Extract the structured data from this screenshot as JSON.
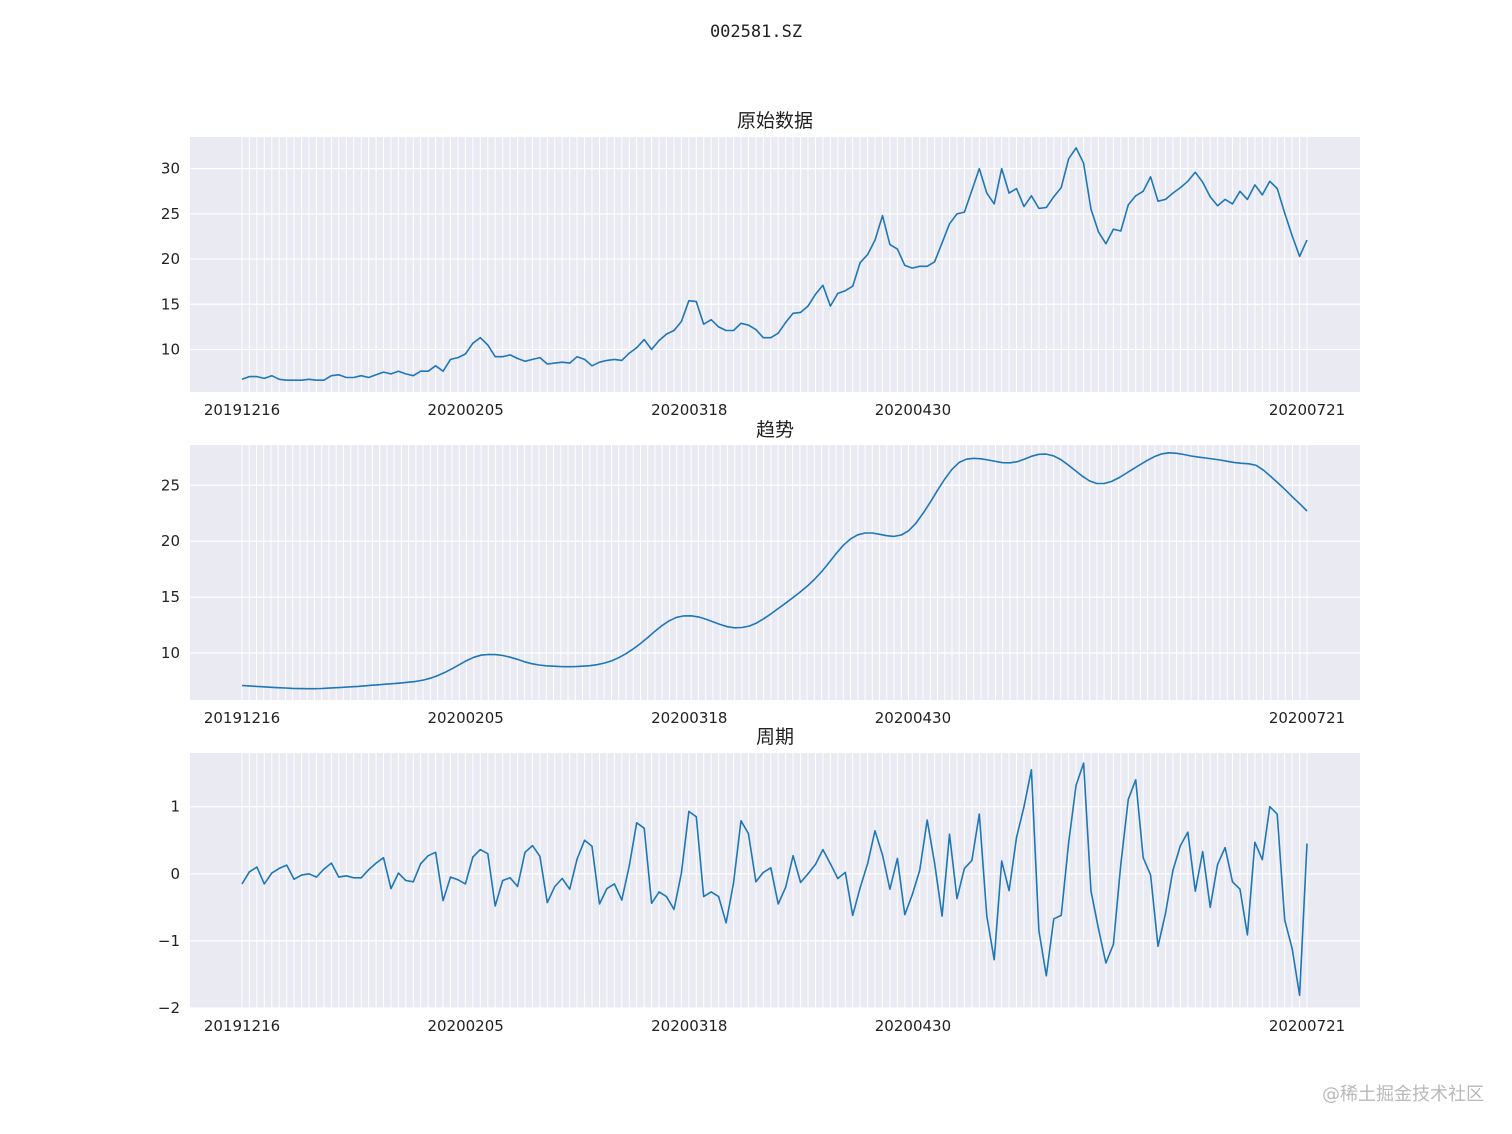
{
  "figure": {
    "suptitle": "002581.SZ",
    "watermark": "@稀土掘金技术社区"
  },
  "chart_data": [
    {
      "type": "line",
      "title": "原始数据",
      "color": "#1f77b4",
      "x_ticks": [
        "20191216",
        "20200205",
        "20200318",
        "20200430",
        "20200721"
      ],
      "y_ticks": [
        10,
        15,
        20,
        25,
        30
      ],
      "ylim": [
        5.3,
        33.5
      ],
      "values": [
        6.7,
        7,
        7,
        6.8,
        7.1,
        6.7,
        6.6,
        6.6,
        6.6,
        6.7,
        6.6,
        6.6,
        7.1,
        7.2,
        6.9,
        6.9,
        7.1,
        6.9,
        7.2,
        7.5,
        7.3,
        7.6,
        7.3,
        7.1,
        7.6,
        7.6,
        8.2,
        7.6,
        8.9,
        9.1,
        9.5,
        10.7,
        11.3,
        10.5,
        9.2,
        9.2,
        9.4,
        9,
        8.7,
        8.9,
        9.1,
        8.4,
        8.5,
        8.6,
        8.5,
        9.2,
        8.9,
        8.2,
        8.6,
        8.8,
        8.9,
        8.8,
        9.6,
        10.2,
        11.1,
        10,
        11,
        11.7,
        12.1,
        13.1,
        15.4,
        15.3,
        12.8,
        13.3,
        12.5,
        12.1,
        12.1,
        12.9,
        12.7,
        12.2,
        11.3,
        11.3,
        11.8,
        13,
        14,
        14.1,
        14.8,
        16.1,
        17.1,
        14.8,
        16.2,
        16.5,
        17,
        19.6,
        20.5,
        22.1,
        24.8,
        21.6,
        21.1,
        19.3,
        19,
        19.2,
        19.2,
        19.7,
        21.8,
        23.9,
        25,
        25.2,
        27.6,
        30,
        27.3,
        26.1,
        30,
        27.3,
        27.8,
        25.8,
        27,
        25.6,
        25.7,
        26.9,
        27.9,
        31.1,
        32.3,
        30.6,
        25.5,
        23,
        21.7,
        23.3,
        23.1,
        26,
        27,
        27.5,
        29.1,
        26.4,
        26.6,
        27.3,
        27.9,
        28.6,
        29.6,
        28.5,
        26.9,
        25.9,
        26.6,
        26.1,
        27.5,
        26.6,
        28.2,
        27.1,
        28.6,
        27.8,
        25.1,
        22.6,
        20.3,
        22.1
      ]
    },
    {
      "type": "line",
      "title": "趋势",
      "color": "#1f77b4",
      "x_ticks": [
        "20191216",
        "20200205",
        "20200318",
        "20200430",
        "20200721"
      ],
      "y_ticks": [
        10,
        15,
        20,
        25
      ],
      "ylim": [
        5.8,
        28.6
      ],
      "values": [
        7.1,
        7.06,
        7.02,
        6.98,
        6.94,
        6.9,
        6.87,
        6.84,
        6.82,
        6.81,
        6.81,
        6.83,
        6.86,
        6.9,
        6.94,
        6.98,
        7.02,
        7.07,
        7.12,
        7.17,
        7.22,
        7.27,
        7.33,
        7.39,
        7.46,
        7.58,
        7.75,
        7.98,
        8.27,
        8.6,
        8.96,
        9.32,
        9.62,
        9.81,
        9.88,
        9.86,
        9.78,
        9.63,
        9.44,
        9.22,
        9.05,
        8.93,
        8.86,
        8.82,
        8.79,
        8.78,
        8.79,
        8.82,
        8.87,
        8.96,
        9.1,
        9.3,
        9.58,
        9.94,
        10.37,
        10.85,
        11.38,
        11.95,
        12.47,
        12.89,
        13.19,
        13.32,
        13.33,
        13.23,
        13.03,
        12.79,
        12.55,
        12.35,
        12.26,
        12.28,
        12.41,
        12.68,
        13.06,
        13.5,
        13.97,
        14.45,
        14.93,
        15.43,
        15.97,
        16.57,
        17.27,
        18.06,
        18.89,
        19.63,
        20.21,
        20.57,
        20.73,
        20.73,
        20.62,
        20.49,
        20.43,
        20.55,
        20.93,
        21.59,
        22.48,
        23.49,
        24.55,
        25.56,
        26.43,
        27.04,
        27.33,
        27.41,
        27.37,
        27.26,
        27.13,
        27.02,
        27.01,
        27.11,
        27.34,
        27.6,
        27.77,
        27.79,
        27.63,
        27.3,
        26.84,
        26.32,
        25.81,
        25.38,
        25.16,
        25.16,
        25.34,
        25.66,
        26.05,
        26.46,
        26.86,
        27.24,
        27.58,
        27.81,
        27.9,
        27.86,
        27.75,
        27.62,
        27.52,
        27.44,
        27.35,
        27.26,
        27.14,
        27.03,
        26.96,
        26.92,
        26.78,
        26.35,
        25.78,
        25.2,
        24.59,
        23.96,
        23.34,
        22.7
      ]
    },
    {
      "type": "line",
      "title": "周期",
      "color": "#1f77b4",
      "x_ticks": [
        "20191216",
        "20200205",
        "20200318",
        "20200430",
        "20200721"
      ],
      "y_ticks": [
        -2,
        -1,
        0,
        1
      ],
      "ylim": [
        -2,
        1.8
      ],
      "values": [
        -0.15,
        0.03,
        0.1,
        -0.15,
        0.01,
        0.08,
        0.13,
        -0.08,
        -0.02,
        0,
        -0.05,
        0.07,
        0.16,
        -0.05,
        -0.03,
        -0.06,
        -0.06,
        0.06,
        0.16,
        0.24,
        -0.22,
        0.01,
        -0.1,
        -0.12,
        0.15,
        0.27,
        0.32,
        -0.4,
        -0.05,
        -0.09,
        -0.15,
        0.25,
        0.36,
        0.3,
        -0.48,
        -0.1,
        -0.06,
        -0.19,
        0.32,
        0.42,
        0.26,
        -0.43,
        -0.19,
        -0.07,
        -0.23,
        0.22,
        0.5,
        0.41,
        -0.45,
        -0.22,
        -0.15,
        -0.39,
        0.12,
        0.76,
        0.68,
        -0.44,
        -0.27,
        -0.34,
        -0.53,
        0.01,
        0.93,
        0.85,
        -0.34,
        -0.27,
        -0.34,
        -0.73,
        -0.14,
        0.79,
        0.6,
        -0.12,
        0.02,
        0.09,
        -0.45,
        -0.2,
        0.27,
        -0.13,
        0,
        0.14,
        0.36,
        0.15,
        -0.07,
        0.02,
        -0.62,
        -0.21,
        0.15,
        0.64,
        0.28,
        -0.23,
        0.23,
        -0.61,
        -0.31,
        0.05,
        0.8,
        0.16,
        -0.63,
        0.59,
        -0.37,
        0.08,
        0.2,
        0.89,
        -0.63,
        -1.28,
        0.19,
        -0.25,
        0.54,
        1,
        1.55,
        -0.85,
        -1.52,
        -0.67,
        -0.62,
        0.47,
        1.32,
        1.65,
        -0.26,
        -0.82,
        -1.33,
        -1.05,
        0.14,
        1.11,
        1.4,
        0.24,
        -0.02,
        -1.08,
        -0.59,
        0.05,
        0.42,
        0.62,
        -0.26,
        0.33,
        -0.5,
        0.14,
        0.39,
        -0.12,
        -0.23,
        -0.91,
        0.47,
        0.21,
        1,
        0.89,
        -0.69,
        -1.11,
        -1.81,
        0.45
      ]
    }
  ]
}
